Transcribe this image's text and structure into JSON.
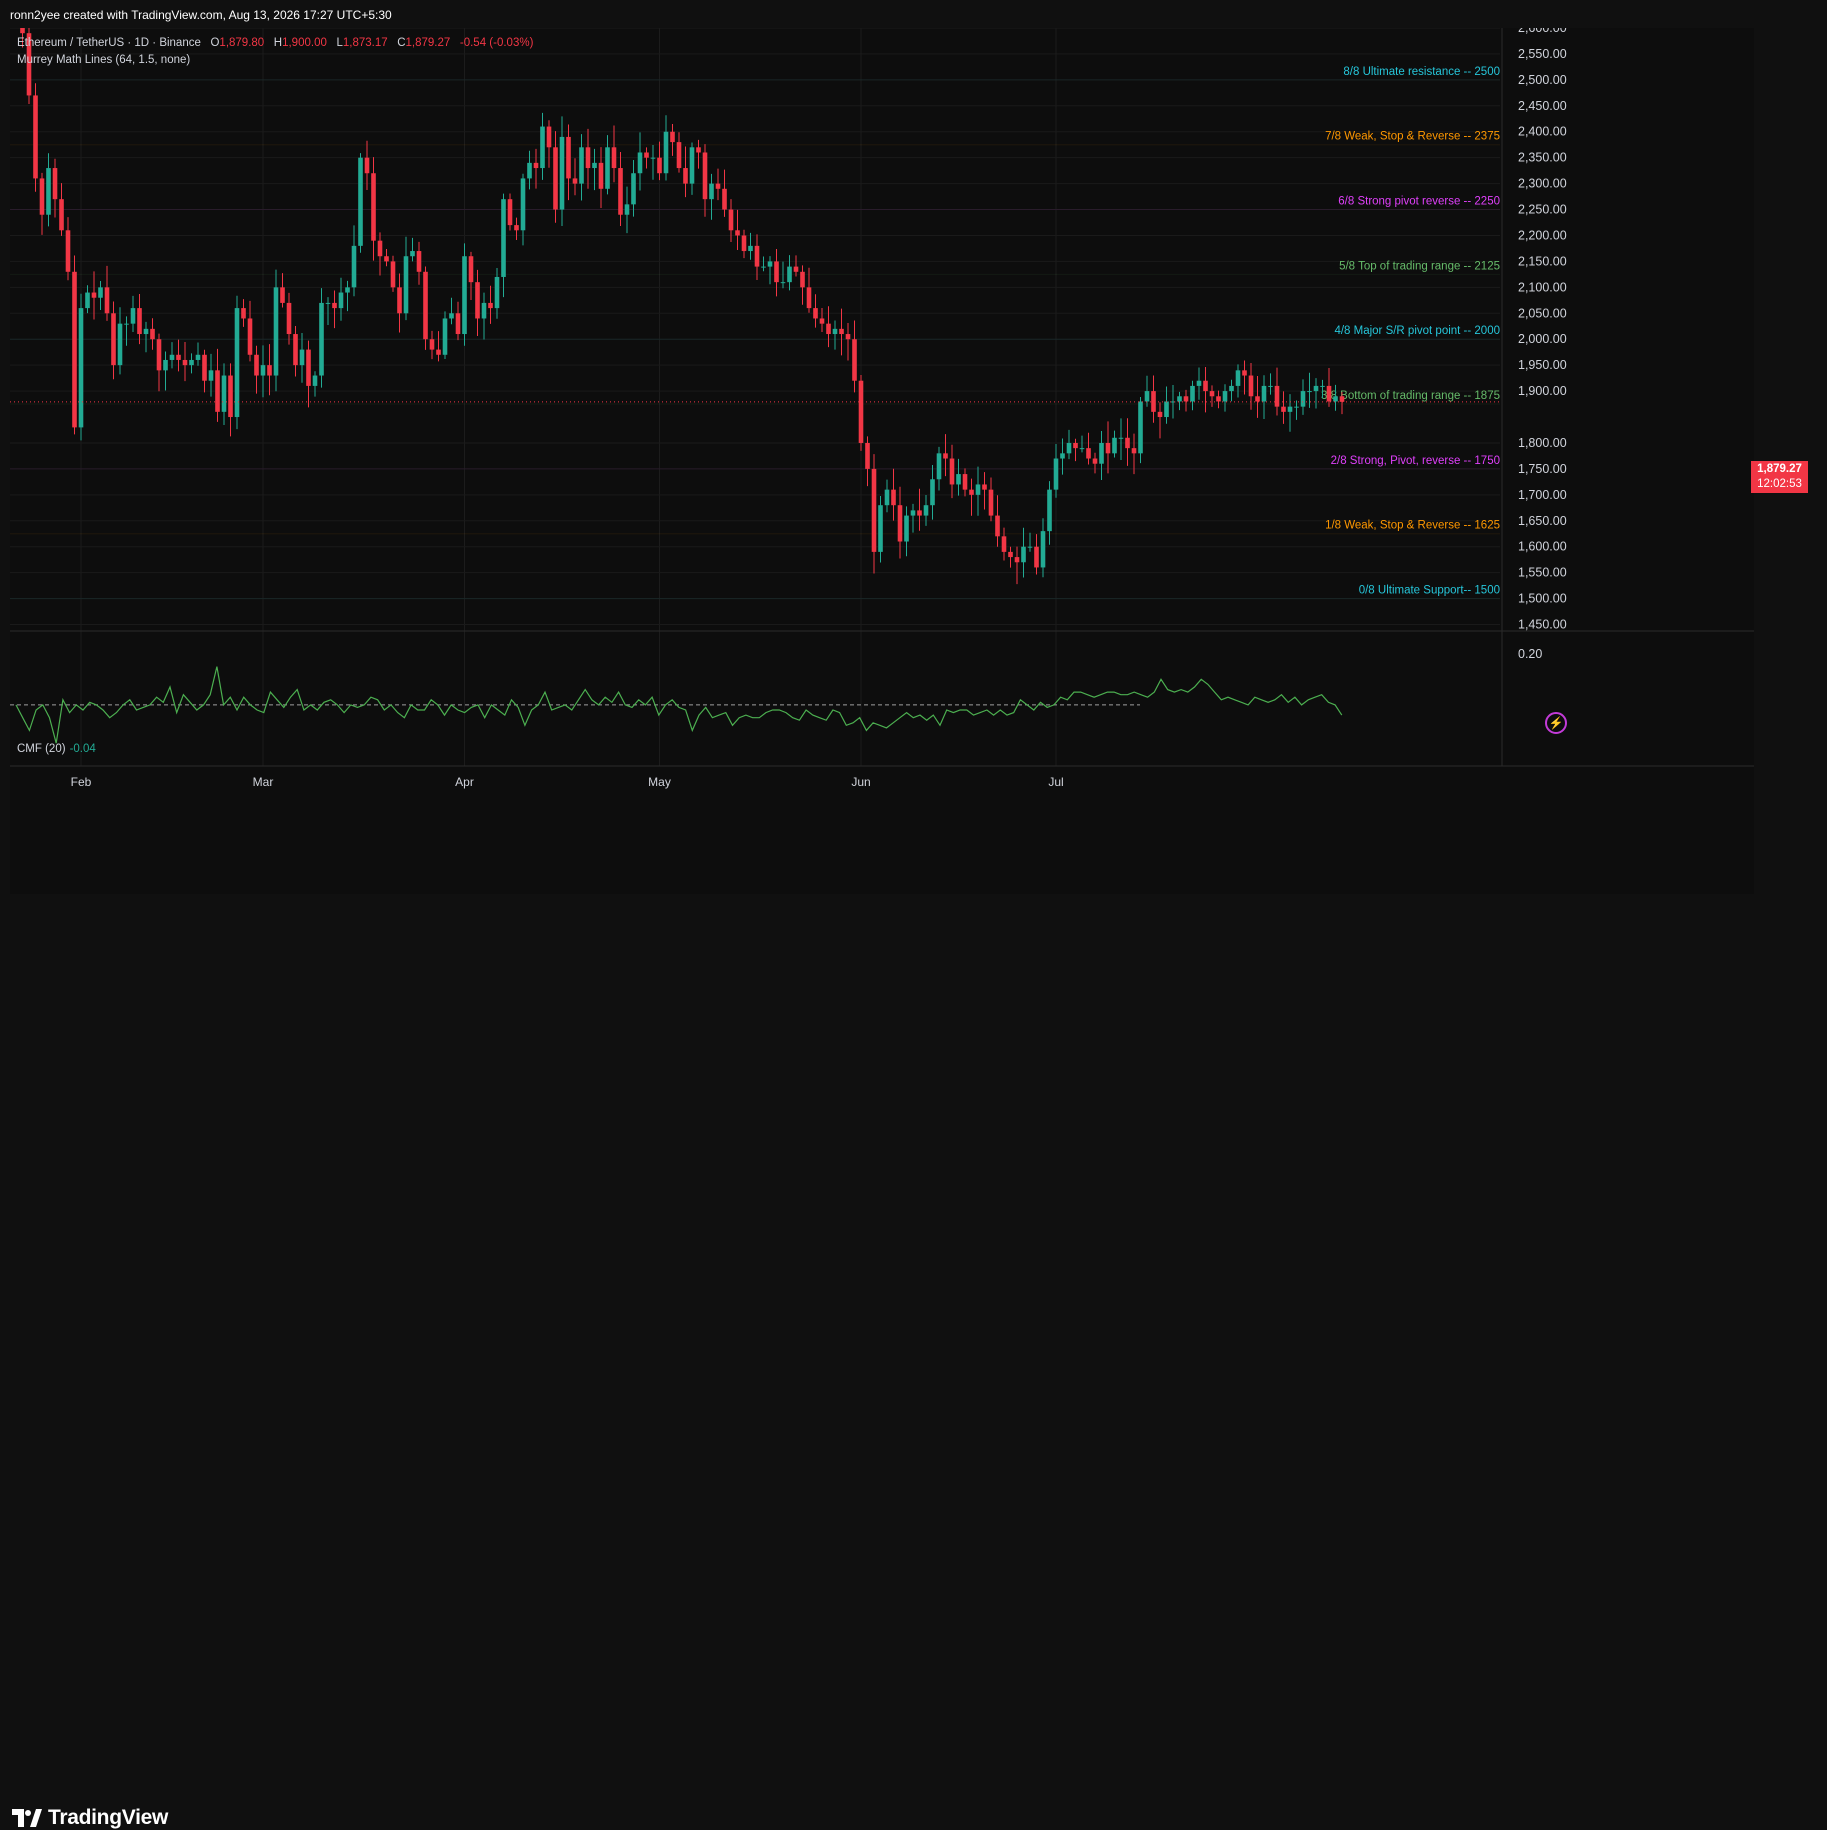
{
  "header": {
    "credit": "ronn2yee created with TradingView.com, Aug 13, 2026 17:27 UTC+5:30"
  },
  "legend": {
    "symbol": "Ethereum / TetherUS · 1D · Binance",
    "o_label": "O",
    "o_value": "1,879.80",
    "h_label": "H",
    "h_value": "1,900.00",
    "l_label": "L",
    "l_value": "1,873.17",
    "c_label": "C",
    "c_value": "1,879.27",
    "change": "-0.54 (-0.03%)",
    "indicator": "Murrey Math Lines (64, 1.5, none)"
  },
  "cmf_legend": {
    "name": "CMF (20)",
    "value": "-0.04"
  },
  "price_tag": {
    "price": "1,879.27",
    "countdown": "12:02:53"
  },
  "footer": {
    "brand": "TradingView"
  },
  "colors": {
    "up": "#22ab94",
    "down": "#f23645",
    "background": "#0d0d0d",
    "cmf_line": "#4caf50"
  },
  "icons": {
    "logo": "tradingview-logo-icon",
    "alert": "lightning-icon"
  },
  "chart_data": {
    "type": "candlestick",
    "title": "Ethereum / TetherUS · 1D · Binance",
    "x_labels": [
      "Feb",
      "Mar",
      "Apr",
      "May",
      "Jun",
      "Jul"
    ],
    "x_label_days": [
      7,
      35,
      66,
      96,
      127,
      157
    ],
    "y_ticks": [
      "2,600.00",
      "2,550.00",
      "2,500.00",
      "2,450.00",
      "2,400.00",
      "2,350.00",
      "2,300.00",
      "2,250.00",
      "2,200.00",
      "2,150.00",
      "2,100.00",
      "2,050.00",
      "2,000.00",
      "1,950.00",
      "1,900.00",
      "1,800.00",
      "1,750.00",
      "1,700.00",
      "1,650.00",
      "1,600.00",
      "1,550.00",
      "1,500.00",
      "1,450.00"
    ],
    "ylim": [
      1440,
      2610
    ],
    "start_day": -3,
    "close_series": [
      2610,
      2590,
      2470,
      2310,
      2240,
      2330,
      2270,
      2210,
      2130,
      1830,
      2060,
      2090,
      2080,
      2100,
      2050,
      1950,
      2030,
      2030,
      2060,
      2010,
      2020,
      2000,
      1940,
      1960,
      1970,
      1960,
      1950,
      1960,
      1970,
      1920,
      1940,
      1860,
      1930,
      1850,
      2060,
      2040,
      1970,
      1930,
      1950,
      1930,
      2100,
      2070,
      2010,
      1950,
      1980,
      1910,
      1930,
      2070,
      2070,
      2060,
      2090,
      2100,
      2180,
      2350,
      2320,
      2190,
      2160,
      2150,
      2100,
      2050,
      2160,
      2170,
      2130,
      2000,
      1980,
      1970,
      2040,
      2050,
      2010,
      2160,
      2110,
      2040,
      2070,
      2060,
      2120,
      2270,
      2220,
      2210,
      2310,
      2340,
      2330,
      2410,
      2370,
      2250,
      2390,
      2310,
      2300,
      2370,
      2330,
      2340,
      2290,
      2370,
      2330,
      2240,
      2260,
      2320,
      2360,
      2350,
      2350,
      2320,
      2400,
      2380,
      2330,
      2300,
      2370,
      2360,
      2270,
      2300,
      2290,
      2250,
      2210,
      2200,
      2170,
      2180,
      2140,
      2140,
      2150,
      2110,
      2110,
      2140,
      2130,
      2100,
      2060,
      2040,
      2030,
      2010,
      2020,
      2010,
      2000,
      1920,
      1800,
      1750,
      1590,
      1680,
      1710,
      1680,
      1610,
      1660,
      1670,
      1660,
      1680,
      1730,
      1780,
      1770,
      1720,
      1740,
      1710,
      1700,
      1720,
      1710,
      1660,
      1620,
      1590,
      1580,
      1570,
      1600,
      1600,
      1560,
      1630,
      1710,
      1770,
      1780,
      1800,
      1790,
      1790,
      1770,
      1760,
      1800,
      1780,
      1810,
      1810,
      1790,
      1780,
      1880,
      1900,
      1860,
      1850,
      1880,
      1880,
      1890,
      1880,
      1910,
      1920,
      1900,
      1890,
      1880,
      1900,
      1910,
      1940,
      1930,
      1890,
      1880,
      1910,
      1910,
      1870,
      1860,
      1870,
      1870,
      1900,
      1900,
      1910,
      1910,
      1880,
      1890,
      1879.27
    ],
    "murrey_lines": [
      {
        "label": "8/8 Ultimate resistance --  2500",
        "value": 2500,
        "color": "#26c6da"
      },
      {
        "label": "7/8 Weak, Stop & Reverse --  2375",
        "value": 2375,
        "color": "#ff9800"
      },
      {
        "label": "6/8 Strong pivot reverse --  2250",
        "value": 2250,
        "color": "#e040fb"
      },
      {
        "label": "5/8 Top of trading range --  2125",
        "value": 2125,
        "color": "#66bb6a"
      },
      {
        "label": "4/8 Major S/R pivot point --  2000",
        "value": 2000,
        "color": "#26c6da"
      },
      {
        "label": "3/8 Bottom of trading range --  1875",
        "value": 1875,
        "color": "#66bb6a"
      },
      {
        "label": "2/8 Strong, Pivot, reverse --  1750",
        "value": 1750,
        "color": "#e040fb"
      },
      {
        "label": "1/8 Weak, Stop & Reverse --  1625",
        "value": 1625,
        "color": "#ff9800"
      },
      {
        "label": "0/8 Ultimate Support--  1500",
        "value": 1500,
        "color": "#26c6da"
      }
    ],
    "cmf": {
      "ylim": [
        -0.2,
        0.25
      ],
      "y_ticks": [
        "0.20"
      ],
      "zero_line": 0,
      "values": [
        0.0,
        -0.05,
        -0.1,
        -0.02,
        0.0,
        -0.05,
        -0.15,
        0.02,
        -0.03,
        0.0,
        -0.02,
        0.01,
        0.0,
        -0.02,
        -0.05,
        -0.03,
        0.0,
        0.02,
        -0.02,
        -0.01,
        0.0,
        0.03,
        0.01,
        0.07,
        -0.03,
        0.04,
        0.01,
        -0.02,
        0.0,
        0.04,
        0.15,
        0.0,
        0.03,
        -0.02,
        0.03,
        0.0,
        -0.02,
        -0.03,
        0.05,
        0.02,
        -0.01,
        0.03,
        0.06,
        -0.02,
        0.0,
        -0.02,
        0.01,
        0.02,
        0.0,
        -0.03,
        0.0,
        -0.01,
        0.0,
        0.03,
        0.02,
        -0.02,
        0.0,
        -0.03,
        -0.05,
        0.0,
        -0.02,
        -0.02,
        0.02,
        0.0,
        -0.04,
        0.0,
        -0.02,
        -0.03,
        -0.01,
        0.0,
        -0.05,
        0.0,
        -0.02,
        -0.04,
        0.02,
        -0.01,
        -0.08,
        -0.02,
        0.0,
        0.05,
        -0.02,
        -0.01,
        0.0,
        -0.02,
        0.02,
        0.06,
        0.02,
        0.0,
        0.03,
        0.01,
        0.05,
        0.0,
        -0.01,
        0.02,
        0.0,
        0.03,
        -0.04,
        0.0,
        0.02,
        -0.01,
        -0.02,
        -0.1,
        -0.04,
        -0.01,
        -0.05,
        -0.04,
        -0.03,
        -0.08,
        -0.05,
        -0.04,
        -0.05,
        -0.05,
        -0.03,
        -0.02,
        -0.02,
        -0.03,
        -0.05,
        -0.06,
        -0.02,
        -0.04,
        -0.05,
        -0.06,
        -0.02,
        -0.03,
        -0.08,
        -0.07,
        -0.05,
        -0.1,
        -0.07,
        -0.08,
        -0.09,
        -0.07,
        -0.05,
        -0.03,
        -0.05,
        -0.04,
        -0.06,
        -0.04,
        -0.08,
        -0.02,
        -0.03,
        -0.02,
        -0.02,
        -0.04,
        -0.03,
        -0.02,
        -0.04,
        -0.02,
        -0.04,
        -0.03,
        0.02,
        0.0,
        -0.02,
        0.01,
        -0.01,
        0.0,
        0.03,
        0.02,
        0.05,
        0.05,
        0.04,
        0.03,
        0.04,
        0.05,
        0.05,
        0.04,
        0.04,
        0.05,
        0.04,
        0.03,
        0.05,
        0.1,
        0.06,
        0.05,
        0.06,
        0.05,
        0.07,
        0.1,
        0.08,
        0.05,
        0.02,
        0.03,
        0.02,
        0.01,
        0.0,
        0.03,
        0.02,
        0.01,
        0.02,
        0.04,
        0.01,
        0.03,
        0.0,
        0.02,
        0.03,
        0.04,
        0.01,
        0.0,
        -0.04
      ]
    }
  }
}
